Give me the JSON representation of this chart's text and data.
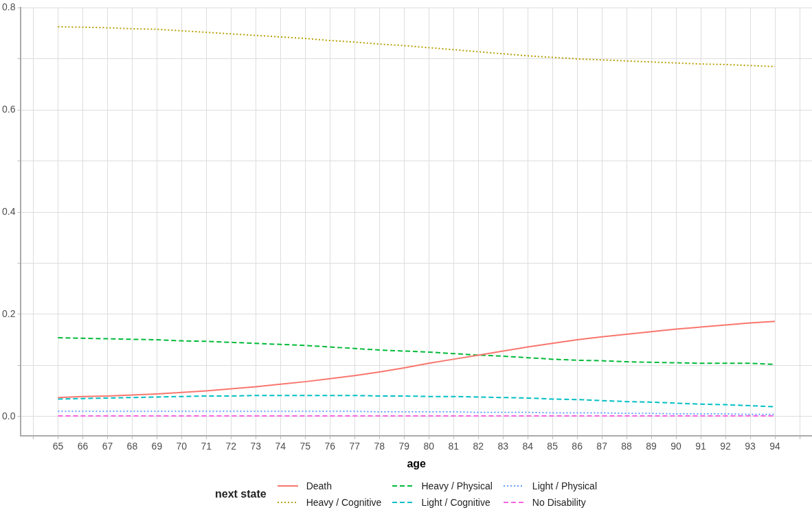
{
  "chart_data": {
    "type": "line",
    "xlabel": "age",
    "legend_title": "next state",
    "legend": "bottom",
    "grid": true,
    "marker": "none",
    "x": [
      65,
      66,
      67,
      68,
      69,
      70,
      71,
      72,
      73,
      74,
      75,
      76,
      77,
      78,
      79,
      80,
      81,
      82,
      83,
      84,
      85,
      86,
      87,
      88,
      89,
      90,
      91,
      92,
      93,
      94
    ],
    "xlim": [
      63.5,
      95.5
    ],
    "xticks": [
      {
        "value": 64,
        "label": null
      },
      65,
      66,
      67,
      68,
      69,
      70,
      71,
      72,
      73,
      74,
      75,
      76,
      77,
      78,
      79,
      80,
      81,
      82,
      83,
      84,
      85,
      86,
      87,
      88,
      89,
      90,
      91,
      92,
      93,
      94,
      {
        "value": 95,
        "label": null
      }
    ],
    "ylim": [
      -0.038,
      0.8
    ],
    "yticks": [
      {
        "value": 0,
        "label": "0.0"
      },
      {
        "value": 0.1,
        "label": null
      },
      0.2,
      {
        "value": 0.3,
        "label": null
      },
      0.4,
      {
        "value": 0.5,
        "label": null
      },
      0.6,
      {
        "value": 0.7,
        "label": null
      },
      0.8
    ],
    "series": [
      {
        "name": "Death",
        "color": "#f8766d",
        "line_style": "solid",
        "values": [
          0.037,
          0.039,
          0.04,
          0.042,
          0.044,
          0.047,
          0.05,
          0.054,
          0.058,
          0.063,
          0.068,
          0.074,
          0.08,
          0.087,
          0.095,
          0.104,
          0.112,
          0.12,
          0.128,
          0.136,
          0.143,
          0.15,
          0.156,
          0.161,
          0.166,
          0.171,
          0.175,
          0.179,
          0.183,
          0.186
        ]
      },
      {
        "name": "Heavy / Cognitive",
        "color": "#b79f00",
        "line_style": "dotted",
        "values": [
          0.763,
          0.762,
          0.761,
          0.759,
          0.758,
          0.755,
          0.752,
          0.749,
          0.746,
          0.743,
          0.74,
          0.736,
          0.733,
          0.729,
          0.726,
          0.722,
          0.718,
          0.714,
          0.71,
          0.706,
          0.703,
          0.7,
          0.698,
          0.696,
          0.694,
          0.692,
          0.69,
          0.689,
          0.687,
          0.685
        ]
      },
      {
        "name": "Heavy / Physical",
        "color": "#00ba38",
        "line_style": "dashed",
        "values": [
          0.154,
          0.153,
          0.152,
          0.151,
          0.15,
          0.148,
          0.147,
          0.145,
          0.143,
          0.141,
          0.139,
          0.136,
          0.133,
          0.13,
          0.128,
          0.126,
          0.123,
          0.12,
          0.118,
          0.115,
          0.112,
          0.11,
          0.109,
          0.107,
          0.106,
          0.105,
          0.104,
          0.104,
          0.104,
          0.102
        ]
      },
      {
        "name": "Light / Cognitive",
        "color": "#00bfc4",
        "line_style": "dashed",
        "values": [
          0.034,
          0.035,
          0.036,
          0.037,
          0.038,
          0.039,
          0.04,
          0.04,
          0.041,
          0.041,
          0.041,
          0.041,
          0.041,
          0.04,
          0.04,
          0.039,
          0.039,
          0.038,
          0.037,
          0.036,
          0.034,
          0.033,
          0.031,
          0.029,
          0.028,
          0.026,
          0.024,
          0.023,
          0.021,
          0.019
        ]
      },
      {
        "name": "Light / Physical",
        "color": "#619cff",
        "line_style": "dotted",
        "values": [
          0.01,
          0.01,
          0.01,
          0.01,
          0.01,
          0.01,
          0.01,
          0.01,
          0.01,
          0.01,
          0.01,
          0.01,
          0.01,
          0.009,
          0.009,
          0.009,
          0.009,
          0.008,
          0.008,
          0.008,
          0.007,
          0.007,
          0.007,
          0.006,
          0.006,
          0.005,
          0.005,
          0.005,
          0.004,
          0.004
        ]
      },
      {
        "name": "No Disability",
        "color": "#f564e3",
        "line_style": "dashed",
        "values": [
          0.001,
          0.001,
          0.001,
          0.001,
          0.001,
          0.001,
          0.001,
          0.001,
          0.001,
          0.001,
          0.001,
          0.001,
          0.001,
          0.001,
          0.001,
          0.001,
          0.001,
          0.001,
          0.001,
          0.001,
          0.001,
          0.001,
          0.001,
          0.001,
          0.001,
          0.001,
          0.001,
          0.001,
          0.001,
          0.001
        ]
      }
    ]
  }
}
